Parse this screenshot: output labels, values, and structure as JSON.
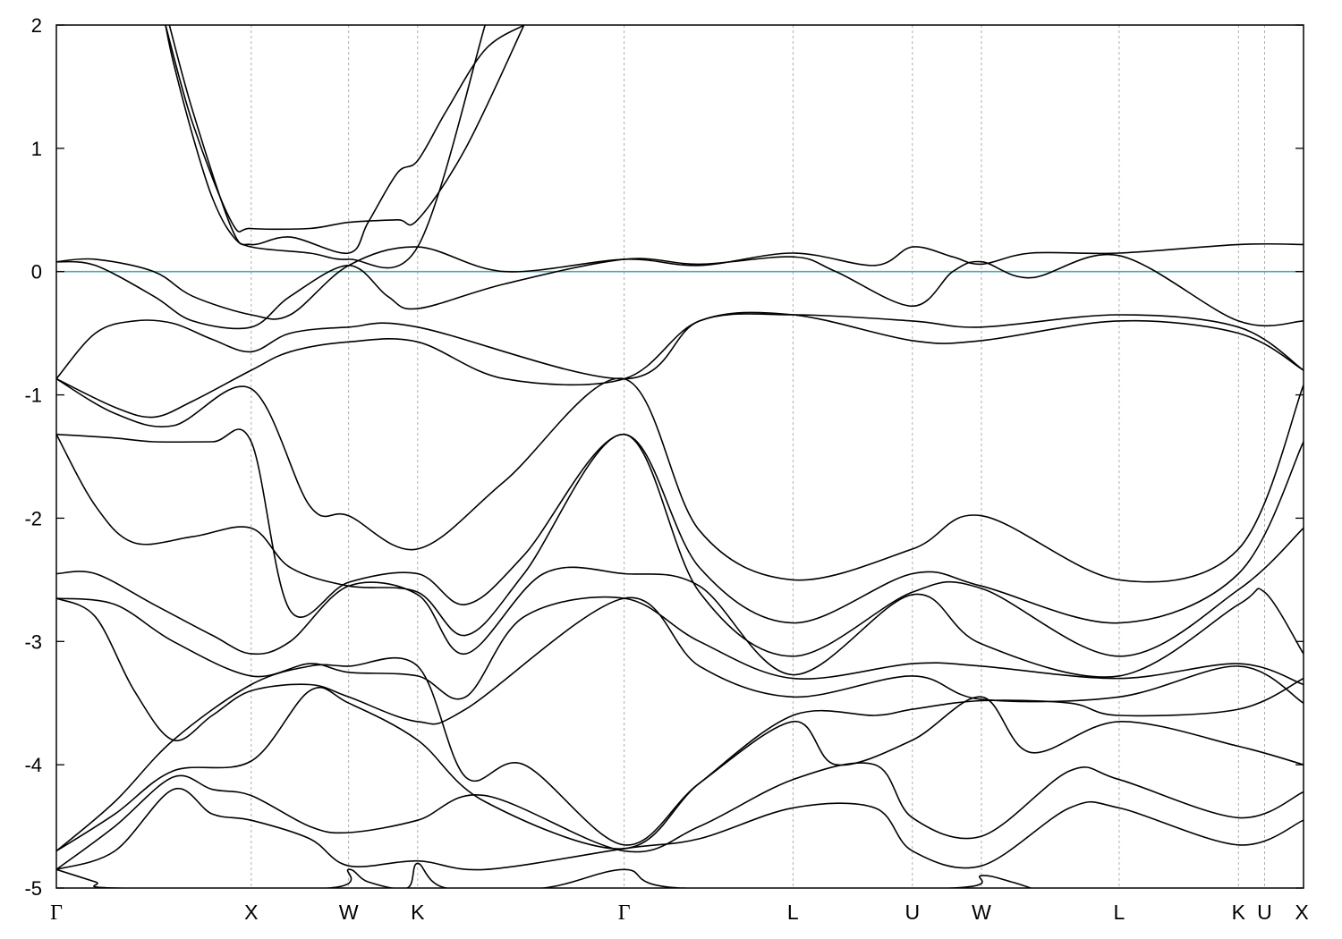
{
  "chart_data": {
    "type": "line",
    "title": "",
    "xlabel": "",
    "ylabel": "",
    "ylim": [
      -5,
      2
    ],
    "yticks": [
      -5,
      -4,
      -3,
      -2,
      -1,
      0,
      1,
      2
    ],
    "grid": "vertical dashed lines at high-symmetry points",
    "fermi_level": {
      "value": 0,
      "color": "#4ca7b8"
    },
    "kpoints": [
      {
        "label": "Γ",
        "x": 0.0
      },
      {
        "label": "X",
        "x": 1.0
      },
      {
        "label": "W",
        "x": 1.5
      },
      {
        "label": "K",
        "x": 1.854
      },
      {
        "label": "Γ",
        "x": 2.914
      },
      {
        "label": "L",
        "x": 3.78
      },
      {
        "label": "U",
        "x": 4.393
      },
      {
        "label": "W",
        "x": 4.747
      },
      {
        "label": "L",
        "x": 5.454
      },
      {
        "label": "K",
        "x": 6.066
      },
      {
        "label": "U",
        "x": 6.2
      },
      {
        "label": "X",
        "x": 6.4
      }
    ],
    "series": [
      {
        "x": [
          0.56,
          0.6,
          0.7,
          0.8,
          0.9,
          1.0,
          1.3,
          1.5,
          1.854,
          2.2
        ],
        "y": [
          2.0,
          1.7,
          1.1,
          0.6,
          0.3,
          0.2,
          0.15,
          0.1,
          0.2,
          2.0
        ]
      },
      {
        "x": [
          0.56,
          0.7,
          0.9,
          1.0,
          1.3,
          1.5,
          1.75,
          1.854,
          2.1,
          2.4
        ],
        "y": [
          2.0,
          1.2,
          0.4,
          0.35,
          0.35,
          0.4,
          0.42,
          0.42,
          1.0,
          2.0
        ]
      },
      {
        "x": [
          0.58,
          0.7,
          0.9,
          1.0,
          1.2,
          1.5,
          1.6,
          1.75,
          1.854,
          2.0,
          2.2,
          2.4
        ],
        "y": [
          2.0,
          1.3,
          0.35,
          0.22,
          0.28,
          0.15,
          0.4,
          0.8,
          0.9,
          1.3,
          1.8,
          2.0
        ]
      },
      {
        "x": [
          0.0,
          0.2,
          0.5,
          0.7,
          1.0,
          1.2,
          1.5,
          1.854,
          2.3,
          2.914,
          3.3,
          3.78,
          4.2,
          4.393,
          4.6,
          4.747,
          5.0,
          5.454,
          6.066,
          6.4
        ],
        "y": [
          0.08,
          0.1,
          0.0,
          -0.2,
          -0.35,
          -0.35,
          0.05,
          0.2,
          0.0,
          0.1,
          0.05,
          0.15,
          0.05,
          0.2,
          0.12,
          0.06,
          0.15,
          0.15,
          0.22,
          0.22
        ]
      },
      {
        "x": [
          0.0,
          0.2,
          0.5,
          0.7,
          1.0,
          1.2,
          1.5,
          1.7,
          1.854,
          2.3,
          2.914,
          3.3,
          3.78,
          4.0,
          4.393,
          4.6,
          4.747,
          5.0,
          5.454,
          6.066,
          6.4
        ],
        "y": [
          0.08,
          0.05,
          -0.2,
          -0.4,
          -0.45,
          -0.2,
          0.05,
          -0.2,
          -0.3,
          -0.1,
          0.1,
          0.06,
          0.12,
          0.0,
          -0.28,
          0.0,
          0.08,
          -0.05,
          0.13,
          -0.4,
          -0.4
        ]
      },
      {
        "x": [
          0.0,
          0.2,
          0.4,
          0.6,
          0.8,
          1.0,
          1.2,
          1.5,
          1.854,
          2.914,
          3.3,
          3.78,
          4.393,
          4.747,
          5.454,
          6.066,
          6.4
        ],
        "y": [
          -0.87,
          -0.5,
          -0.4,
          -0.42,
          -0.55,
          -0.65,
          -0.5,
          -0.45,
          -0.45,
          -0.87,
          -0.4,
          -0.35,
          -0.4,
          -0.45,
          -0.35,
          -0.45,
          -0.8
        ]
      },
      {
        "x": [
          0.0,
          0.3,
          0.5,
          0.7,
          1.0,
          1.2,
          1.5,
          1.854,
          2.3,
          2.914,
          3.3,
          3.78,
          4.393,
          4.747,
          5.454,
          6.066,
          6.4
        ],
        "y": [
          -0.87,
          -1.1,
          -1.18,
          -1.05,
          -0.8,
          -0.65,
          -0.57,
          -0.57,
          -0.87,
          -0.87,
          -0.4,
          -0.35,
          -0.56,
          -0.56,
          -0.4,
          -0.5,
          -0.8
        ]
      },
      {
        "x": [
          0.0,
          0.3,
          0.6,
          1.0,
          1.3,
          1.5,
          1.854,
          2.3,
          2.914,
          3.3,
          3.78,
          4.393,
          4.747,
          5.454,
          6.066,
          6.4
        ],
        "y": [
          -0.87,
          -1.15,
          -1.25,
          -0.95,
          -1.9,
          -1.98,
          -2.25,
          -1.7,
          -0.87,
          -2.1,
          -2.5,
          -2.25,
          -1.98,
          -2.5,
          -2.25,
          -0.92
        ]
      },
      {
        "x": [
          0.0,
          0.3,
          0.5,
          0.8,
          1.0,
          1.2,
          1.5,
          1.854,
          2.1,
          2.4,
          2.914,
          3.3,
          3.78,
          4.393,
          4.747,
          5.454,
          6.066,
          6.4
        ],
        "y": [
          -1.32,
          -1.35,
          -1.38,
          -1.38,
          -1.38,
          -2.75,
          -2.52,
          -2.45,
          -2.7,
          -2.3,
          -1.32,
          -2.4,
          -2.85,
          -2.45,
          -2.55,
          -2.85,
          -2.45,
          -1.38
        ]
      },
      {
        "x": [
          0.0,
          0.2,
          0.4,
          0.7,
          1.0,
          1.2,
          1.5,
          1.854,
          2.1,
          2.4,
          2.914,
          3.3,
          3.78,
          4.393,
          4.747,
          5.454,
          6.066,
          6.4
        ],
        "y": [
          -1.32,
          -1.9,
          -2.2,
          -2.15,
          -2.08,
          -2.4,
          -2.55,
          -2.6,
          -2.95,
          -2.45,
          -1.32,
          -2.6,
          -3.12,
          -2.6,
          -2.57,
          -3.12,
          -2.58,
          -2.08
        ]
      },
      {
        "x": [
          0.0,
          0.2,
          0.5,
          0.8,
          1.0,
          1.2,
          1.5,
          1.854,
          2.1,
          2.5,
          2.914,
          3.3,
          3.78,
          4.393,
          4.747,
          5.454,
          6.066,
          6.2,
          6.4
        ],
        "y": [
          -2.45,
          -2.45,
          -2.7,
          -2.95,
          -3.1,
          -3.0,
          -2.55,
          -2.62,
          -3.1,
          -2.45,
          -2.45,
          -2.55,
          -3.27,
          -2.62,
          -3.02,
          -3.28,
          -2.7,
          -2.6,
          -3.1
        ]
      },
      {
        "x": [
          0.0,
          0.3,
          0.6,
          1.0,
          1.3,
          1.5,
          1.854,
          2.1,
          2.4,
          2.914,
          3.3,
          3.78,
          4.393,
          4.747,
          5.454,
          6.066,
          6.4
        ],
        "y": [
          -2.65,
          -2.7,
          -3.0,
          -3.28,
          -3.18,
          -3.25,
          -3.28,
          -3.45,
          -2.8,
          -2.65,
          -3.0,
          -3.3,
          -3.18,
          -3.2,
          -3.3,
          -3.18,
          -3.35
        ]
      },
      {
        "x": [
          0.0,
          0.2,
          0.4,
          0.6,
          0.8,
          1.0,
          1.3,
          1.5,
          1.854,
          2.1,
          2.914,
          3.3,
          3.78,
          4.393,
          4.747,
          5.454,
          6.066,
          6.4
        ],
        "y": [
          -2.65,
          -2.8,
          -3.4,
          -3.8,
          -3.6,
          -3.4,
          -3.35,
          -3.45,
          -3.65,
          -3.55,
          -2.65,
          -3.2,
          -3.45,
          -3.28,
          -3.47,
          -3.45,
          -3.2,
          -3.5
        ]
      },
      {
        "x": [
          0.0,
          0.3,
          0.6,
          1.0,
          1.3,
          1.5,
          1.854,
          2.1,
          2.4,
          2.914,
          3.3,
          3.78,
          4.0,
          4.393,
          4.747,
          5.0,
          5.454,
          6.066,
          6.4
        ],
        "y": [
          -4.7,
          -4.3,
          -3.8,
          -3.35,
          -3.2,
          -3.2,
          -3.2,
          -4.1,
          -4.0,
          -4.65,
          -4.15,
          -3.65,
          -4.0,
          -3.8,
          -3.45,
          -3.9,
          -3.65,
          -3.85,
          -4.0
        ]
      },
      {
        "x": [
          0.0,
          0.3,
          0.6,
          1.0,
          1.3,
          1.5,
          1.854,
          2.2,
          2.914,
          3.3,
          3.78,
          4.2,
          4.393,
          4.747,
          5.2,
          5.454,
          6.066,
          6.4
        ],
        "y": [
          -4.7,
          -4.4,
          -4.05,
          -3.97,
          -3.4,
          -3.5,
          -3.8,
          -4.3,
          -4.68,
          -4.15,
          -3.6,
          -3.6,
          -3.55,
          -3.48,
          -3.5,
          -3.6,
          -3.55,
          -3.3
        ]
      },
      {
        "x": [
          0.0,
          0.3,
          0.6,
          0.8,
          1.0,
          1.3,
          1.5,
          1.854,
          2.2,
          2.914,
          3.3,
          3.78,
          4.2,
          4.393,
          4.747,
          5.2,
          5.454,
          6.066,
          6.4
        ],
        "y": [
          -4.85,
          -4.5,
          -4.1,
          -4.2,
          -4.25,
          -4.5,
          -4.55,
          -4.45,
          -4.25,
          -4.7,
          -4.5,
          -4.12,
          -4.0,
          -4.43,
          -4.58,
          -4.05,
          -4.12,
          -4.43,
          -4.22
        ]
      },
      {
        "x": [
          0.0,
          0.3,
          0.6,
          0.8,
          1.0,
          1.3,
          1.5,
          1.854,
          2.2,
          2.914,
          3.3,
          3.78,
          4.2,
          4.393,
          4.747,
          5.2,
          5.454,
          6.066,
          6.4
        ],
        "y": [
          -4.85,
          -4.7,
          -4.2,
          -4.4,
          -4.45,
          -4.6,
          -4.82,
          -4.78,
          -4.85,
          -4.68,
          -4.6,
          -4.35,
          -4.35,
          -4.7,
          -4.82,
          -4.35,
          -4.35,
          -4.65,
          -4.45
        ]
      },
      {
        "x": [
          0.0,
          0.2,
          0.3,
          1.4,
          1.5,
          1.6,
          1.8,
          1.854,
          2.0,
          2.5,
          2.914,
          3.2,
          4.6,
          4.747,
          4.9,
          5.0
        ],
        "y": [
          -4.85,
          -4.95,
          -5.0,
          -5.0,
          -4.85,
          -4.95,
          -5.0,
          -4.8,
          -5.0,
          -5.0,
          -4.85,
          -5.0,
          -5.0,
          -4.9,
          -4.95,
          -5.0
        ]
      }
    ]
  }
}
